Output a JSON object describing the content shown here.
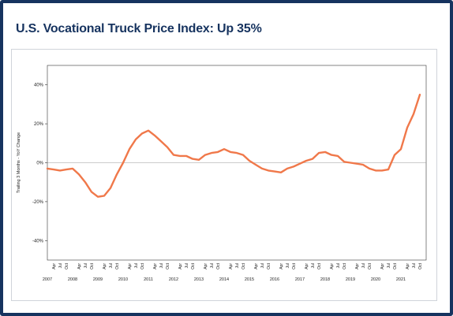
{
  "chart_data": {
    "type": "line",
    "title": "U.S. Vocational Truck Price Index: Up 35%",
    "y_label": "Trailing 3 Months - YoY Change",
    "categories": [
      null,
      "Apr",
      "Jul",
      "Oct",
      null,
      "Apr",
      "Jul",
      "Oct",
      null,
      "Apr",
      "Jul",
      "Oct",
      null,
      "Apr",
      "Jul",
      "Oct",
      null,
      "Apr",
      "Jul",
      "Oct",
      null,
      "Apr",
      "Jul",
      "Oct",
      null,
      "Apr",
      "Jul",
      "Oct",
      null,
      "Apr",
      "Jul",
      "Oct",
      null,
      "Apr",
      "Jul",
      "Oct",
      null,
      "Apr",
      "Jul",
      "Oct",
      null,
      "Apr",
      "Jul",
      "Oct",
      null,
      "Apr",
      "Jul",
      "Oct",
      null,
      "Apr",
      "Jul",
      "Oct",
      null,
      "Apr",
      "Jul",
      "Oct",
      null,
      "Apr",
      "Jul",
      "Oct"
    ],
    "years": [
      "2007",
      "2008",
      "2009",
      "2010",
      "2011",
      "2012",
      "2013",
      "2014",
      "2015",
      "2016",
      "2017",
      "2018",
      "2019",
      "2020",
      "2021"
    ],
    "series": [
      {
        "color": "#f0784a",
        "values": [
          -3,
          -3.5,
          -4,
          -3.5,
          -3,
          -6,
          -10,
          -15,
          -17.5,
          -17,
          -13,
          -6,
          0,
          7,
          12,
          15,
          16.5,
          14,
          11,
          8,
          4,
          3.5,
          3.5,
          2,
          1.5,
          4,
          5,
          5.5,
          7,
          5.5,
          5,
          4,
          1,
          -1,
          -3,
          -4,
          -4.5,
          -5,
          -3,
          -2,
          -0.5,
          1,
          2,
          5,
          5.5,
          4,
          3.5,
          0.5,
          0,
          -0.5,
          -1,
          -3,
          -4,
          -4,
          -3.5,
          4,
          7,
          18,
          25,
          35
        ]
      }
    ],
    "ylim": [
      -50,
      50
    ],
    "yticks": [
      {
        "value": -40,
        "label": "-40%"
      },
      {
        "value": -20,
        "label": "-20%"
      },
      {
        "value": 0,
        "label": "0%"
      },
      {
        "value": 20,
        "label": "20%"
      },
      {
        "value": 40,
        "label": "40%"
      }
    ]
  }
}
